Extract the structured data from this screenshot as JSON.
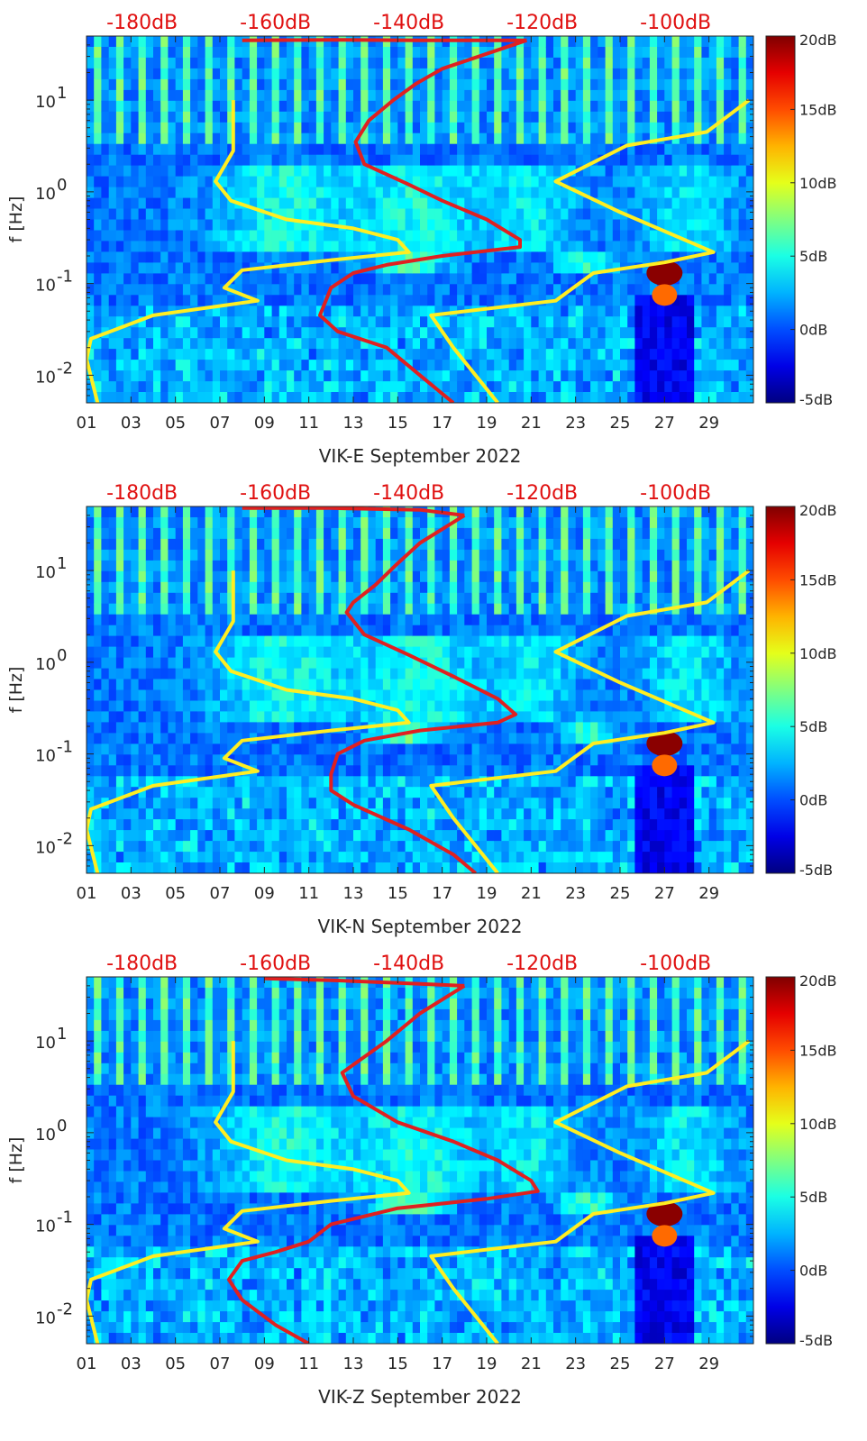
{
  "chart_data": [
    {
      "type": "heatmap",
      "title": "",
      "xlabel": "VIK-E September 2022",
      "ylabel": "f [Hz]",
      "x_range_days": [
        1,
        31
      ],
      "y_range_hz": [
        0.005,
        50
      ],
      "x_ticks": [
        {
          "day": 1,
          "label": "01"
        },
        {
          "day": 3,
          "label": "03"
        },
        {
          "day": 5,
          "label": "05"
        },
        {
          "day": 7,
          "label": "07"
        },
        {
          "day": 9,
          "label": "09"
        },
        {
          "day": 11,
          "label": "11"
        },
        {
          "day": 13,
          "label": "13"
        },
        {
          "day": 15,
          "label": "15"
        },
        {
          "day": 17,
          "label": "17"
        },
        {
          "day": 19,
          "label": "19"
        },
        {
          "day": 21,
          "label": "21"
        },
        {
          "day": 23,
          "label": "23"
        },
        {
          "day": 25,
          "label": "25"
        },
        {
          "day": 27,
          "label": "27"
        },
        {
          "day": 29,
          "label": "29"
        }
      ],
      "y_ticks": [
        {
          "value": 10,
          "base": "10",
          "exp": "1"
        },
        {
          "value": 1,
          "base": "10",
          "exp": "0"
        },
        {
          "value": 0.1,
          "base": "10",
          "exp": "-1"
        },
        {
          "value": 0.01,
          "base": "10",
          "exp": "-2"
        }
      ],
      "top_db_labels": [
        {
          "day": 3.5,
          "label": "-180dB"
        },
        {
          "day": 9.5,
          "label": "-160dB"
        },
        {
          "day": 15.5,
          "label": "-140dB"
        },
        {
          "day": 21.5,
          "label": "-120dB"
        },
        {
          "day": 27.5,
          "label": "-100dB"
        }
      ],
      "colorbar": {
        "range_db": [
          -5,
          20
        ],
        "ticks": [
          {
            "value": 20,
            "label": "20dB"
          },
          {
            "value": 15,
            "label": "15dB"
          },
          {
            "value": 10,
            "label": "10dB"
          },
          {
            "value": 5,
            "label": "5dB"
          },
          {
            "value": 0,
            "label": "0dB"
          },
          {
            "value": -5,
            "label": "-5dB"
          }
        ]
      },
      "series": [
        {
          "name": "reference-model-yellow",
          "color": "#ffee22",
          "points": [
            [
              7.6,
              10
            ],
            [
              7.6,
              2.8
            ],
            [
              6.8,
              1.3
            ],
            [
              7.5,
              0.8
            ],
            [
              10,
              0.5
            ],
            [
              13,
              0.4
            ],
            [
              15,
              0.3
            ],
            [
              15.5,
              0.22
            ],
            [
              12,
              0.18
            ],
            [
              8,
              0.14
            ],
            [
              7.2,
              0.09
            ],
            [
              8.7,
              0.065
            ],
            [
              4,
              0.045
            ],
            [
              1.2,
              0.025
            ],
            [
              1,
              0.015
            ],
            [
              1.5,
              0.005
            ]
          ]
        },
        {
          "name": "reference-model-yellow-right",
          "color": "#ffee22",
          "points": [
            [
              30.8,
              10
            ],
            [
              28.9,
              4.5
            ],
            [
              25.3,
              3.2
            ],
            [
              22.1,
              1.3
            ],
            [
              25,
              0.6
            ],
            [
              29.2,
              0.22
            ],
            [
              27,
              0.17
            ],
            [
              23.8,
              0.13
            ],
            [
              22.1,
              0.065
            ],
            [
              16.5,
              0.045
            ],
            [
              17.5,
              0.02
            ],
            [
              19.5,
              0.005
            ]
          ]
        },
        {
          "name": "psd-red",
          "color": "#e02020",
          "points": [
            [
              20.8,
              45
            ],
            [
              17,
              22
            ],
            [
              15.8,
              15
            ],
            [
              14.8,
              10
            ],
            [
              13.7,
              6
            ],
            [
              13.1,
              3.5
            ],
            [
              13.5,
              2
            ],
            [
              15.5,
              1.2
            ],
            [
              17,
              0.8
            ],
            [
              19,
              0.5
            ],
            [
              20.5,
              0.3
            ],
            [
              20.5,
              0.25
            ],
            [
              17,
              0.2
            ],
            [
              14.5,
              0.16
            ],
            [
              13,
              0.13
            ],
            [
              12,
              0.09
            ],
            [
              11.5,
              0.045
            ],
            [
              12.3,
              0.03
            ],
            [
              14.5,
              0.02
            ],
            [
              16,
              0.01
            ],
            [
              17.5,
              0.005
            ]
          ]
        },
        {
          "name": "psd-red-top",
          "color": "#e02020",
          "points": [
            [
              8,
              45
            ],
            [
              12,
              45.5
            ],
            [
              16,
              45
            ],
            [
              20.8,
              45
            ]
          ]
        }
      ]
    },
    {
      "type": "heatmap",
      "title": "",
      "xlabel": "VIK-N September 2022",
      "ylabel": "f [Hz]",
      "x_range_days": [
        1,
        31
      ],
      "y_range_hz": [
        0.005,
        50
      ],
      "x_ticks": [
        {
          "day": 1,
          "label": "01"
        },
        {
          "day": 3,
          "label": "03"
        },
        {
          "day": 5,
          "label": "05"
        },
        {
          "day": 7,
          "label": "07"
        },
        {
          "day": 9,
          "label": "09"
        },
        {
          "day": 11,
          "label": "11"
        },
        {
          "day": 13,
          "label": "13"
        },
        {
          "day": 15,
          "label": "15"
        },
        {
          "day": 17,
          "label": "17"
        },
        {
          "day": 19,
          "label": "19"
        },
        {
          "day": 21,
          "label": "21"
        },
        {
          "day": 23,
          "label": "23"
        },
        {
          "day": 25,
          "label": "25"
        },
        {
          "day": 27,
          "label": "27"
        },
        {
          "day": 29,
          "label": "29"
        }
      ],
      "y_ticks": [
        {
          "value": 10,
          "base": "10",
          "exp": "1"
        },
        {
          "value": 1,
          "base": "10",
          "exp": "0"
        },
        {
          "value": 0.1,
          "base": "10",
          "exp": "-1"
        },
        {
          "value": 0.01,
          "base": "10",
          "exp": "-2"
        }
      ],
      "top_db_labels": [
        {
          "day": 3.5,
          "label": "-180dB"
        },
        {
          "day": 9.5,
          "label": "-160dB"
        },
        {
          "day": 15.5,
          "label": "-140dB"
        },
        {
          "day": 21.5,
          "label": "-120dB"
        },
        {
          "day": 27.5,
          "label": "-100dB"
        }
      ],
      "colorbar": {
        "range_db": [
          -5,
          20
        ],
        "ticks": [
          {
            "value": 20,
            "label": "20dB"
          },
          {
            "value": 15,
            "label": "15dB"
          },
          {
            "value": 10,
            "label": "10dB"
          },
          {
            "value": 5,
            "label": "5dB"
          },
          {
            "value": 0,
            "label": "0dB"
          },
          {
            "value": -5,
            "label": "-5dB"
          }
        ]
      },
      "series": [
        {
          "name": "reference-model-yellow",
          "color": "#ffee22",
          "points": [
            [
              7.6,
              10
            ],
            [
              7.6,
              2.8
            ],
            [
              6.8,
              1.3
            ],
            [
              7.5,
              0.8
            ],
            [
              10,
              0.5
            ],
            [
              13,
              0.4
            ],
            [
              15,
              0.3
            ],
            [
              15.5,
              0.22
            ],
            [
              12,
              0.18
            ],
            [
              8,
              0.14
            ],
            [
              7.2,
              0.09
            ],
            [
              8.7,
              0.065
            ],
            [
              4,
              0.045
            ],
            [
              1.2,
              0.025
            ],
            [
              1,
              0.015
            ],
            [
              1.5,
              0.005
            ]
          ]
        },
        {
          "name": "reference-model-yellow-right",
          "color": "#ffee22",
          "points": [
            [
              30.8,
              10
            ],
            [
              28.9,
              4.5
            ],
            [
              25.3,
              3.2
            ],
            [
              22.1,
              1.3
            ],
            [
              25,
              0.6
            ],
            [
              29.2,
              0.22
            ],
            [
              27,
              0.17
            ],
            [
              23.8,
              0.13
            ],
            [
              22.1,
              0.065
            ],
            [
              16.5,
              0.045
            ],
            [
              17.5,
              0.02
            ],
            [
              19.5,
              0.005
            ]
          ]
        },
        {
          "name": "psd-red",
          "color": "#e02020",
          "points": [
            [
              18,
              40
            ],
            [
              16,
              20
            ],
            [
              15,
              12
            ],
            [
              14,
              7
            ],
            [
              13,
              4.5
            ],
            [
              12.7,
              3.5
            ],
            [
              13.5,
              2
            ],
            [
              15.5,
              1.2
            ],
            [
              17.5,
              0.7
            ],
            [
              19.5,
              0.4
            ],
            [
              20.3,
              0.27
            ],
            [
              19.5,
              0.22
            ],
            [
              16,
              0.18
            ],
            [
              13.5,
              0.14
            ],
            [
              12.3,
              0.1
            ],
            [
              12,
              0.06
            ],
            [
              12,
              0.04
            ],
            [
              13,
              0.028
            ],
            [
              15.5,
              0.015
            ],
            [
              17.5,
              0.008
            ],
            [
              18.5,
              0.005
            ]
          ]
        },
        {
          "name": "psd-red-top",
          "color": "#e02020",
          "points": [
            [
              8,
              48
            ],
            [
              12,
              48
            ],
            [
              16,
              46
            ],
            [
              18,
              40
            ]
          ]
        }
      ]
    },
    {
      "type": "heatmap",
      "title": "",
      "xlabel": "VIK-Z September 2022",
      "ylabel": "f [Hz]",
      "x_range_days": [
        1,
        31
      ],
      "y_range_hz": [
        0.005,
        50
      ],
      "x_ticks": [
        {
          "day": 1,
          "label": "01"
        },
        {
          "day": 3,
          "label": "03"
        },
        {
          "day": 5,
          "label": "05"
        },
        {
          "day": 7,
          "label": "07"
        },
        {
          "day": 9,
          "label": "09"
        },
        {
          "day": 11,
          "label": "11"
        },
        {
          "day": 13,
          "label": "13"
        },
        {
          "day": 15,
          "label": "15"
        },
        {
          "day": 17,
          "label": "17"
        },
        {
          "day": 19,
          "label": "19"
        },
        {
          "day": 21,
          "label": "21"
        },
        {
          "day": 23,
          "label": "23"
        },
        {
          "day": 25,
          "label": "25"
        },
        {
          "day": 27,
          "label": "27"
        },
        {
          "day": 29,
          "label": "29"
        }
      ],
      "y_ticks": [
        {
          "value": 10,
          "base": "10",
          "exp": "1"
        },
        {
          "value": 1,
          "base": "10",
          "exp": "0"
        },
        {
          "value": 0.1,
          "base": "10",
          "exp": "-1"
        },
        {
          "value": 0.01,
          "base": "10",
          "exp": "-2"
        }
      ],
      "top_db_labels": [
        {
          "day": 3.5,
          "label": "-180dB"
        },
        {
          "day": 9.5,
          "label": "-160dB"
        },
        {
          "day": 15.5,
          "label": "-140dB"
        },
        {
          "day": 21.5,
          "label": "-120dB"
        },
        {
          "day": 27.5,
          "label": "-100dB"
        }
      ],
      "colorbar": {
        "range_db": [
          -5,
          20
        ],
        "ticks": [
          {
            "value": 20,
            "label": "20dB"
          },
          {
            "value": 15,
            "label": "15dB"
          },
          {
            "value": 10,
            "label": "10dB"
          },
          {
            "value": 5,
            "label": "5dB"
          },
          {
            "value": 0,
            "label": "0dB"
          },
          {
            "value": -5,
            "label": "-5dB"
          }
        ]
      },
      "series": [
        {
          "name": "reference-model-yellow",
          "color": "#ffee22",
          "points": [
            [
              7.6,
              10
            ],
            [
              7.6,
              2.8
            ],
            [
              6.8,
              1.3
            ],
            [
              7.5,
              0.8
            ],
            [
              10,
              0.5
            ],
            [
              13,
              0.4
            ],
            [
              15,
              0.3
            ],
            [
              15.5,
              0.22
            ],
            [
              12,
              0.18
            ],
            [
              8,
              0.14
            ],
            [
              7.2,
              0.09
            ],
            [
              8.7,
              0.065
            ],
            [
              4,
              0.045
            ],
            [
              1.2,
              0.025
            ],
            [
              1,
              0.015
            ],
            [
              1.5,
              0.005
            ]
          ]
        },
        {
          "name": "reference-model-yellow-right",
          "color": "#ffee22",
          "points": [
            [
              30.8,
              10
            ],
            [
              28.9,
              4.5
            ],
            [
              25.3,
              3.2
            ],
            [
              22.1,
              1.3
            ],
            [
              25,
              0.6
            ],
            [
              29.2,
              0.22
            ],
            [
              27,
              0.17
            ],
            [
              23.8,
              0.13
            ],
            [
              22.1,
              0.065
            ],
            [
              16.5,
              0.045
            ],
            [
              17.5,
              0.02
            ],
            [
              19.5,
              0.005
            ]
          ]
        },
        {
          "name": "psd-red",
          "color": "#e02020",
          "points": [
            [
              18,
              40
            ],
            [
              16,
              20
            ],
            [
              14.5,
              10
            ],
            [
              13,
              5.5
            ],
            [
              12.5,
              4.5
            ],
            [
              13,
              2.5
            ],
            [
              15,
              1.3
            ],
            [
              17.5,
              0.8
            ],
            [
              19.5,
              0.5
            ],
            [
              21,
              0.3
            ],
            [
              21.3,
              0.23
            ],
            [
              19,
              0.19
            ],
            [
              15,
              0.15
            ],
            [
              12,
              0.1
            ],
            [
              11,
              0.065
            ],
            [
              9.5,
              0.05
            ],
            [
              8,
              0.04
            ],
            [
              7.4,
              0.025
            ],
            [
              8,
              0.015
            ],
            [
              9.5,
              0.008
            ],
            [
              11,
              0.005
            ]
          ]
        },
        {
          "name": "psd-red-top",
          "color": "#e02020",
          "points": [
            [
              9,
              48
            ],
            [
              12,
              46
            ],
            [
              16,
              42
            ],
            [
              18,
              40
            ]
          ]
        }
      ]
    }
  ]
}
